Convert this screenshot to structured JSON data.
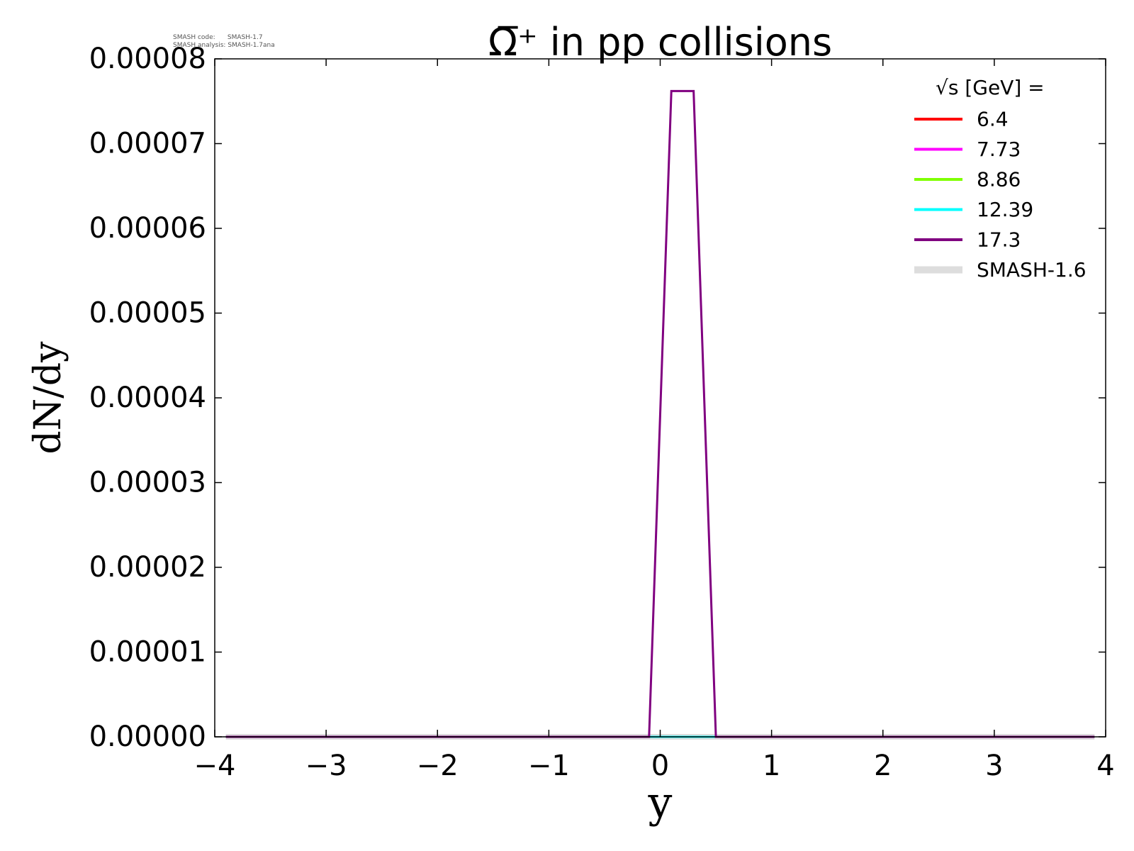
{
  "meta": {
    "code_label": "SMASH code:",
    "code_version": "SMASH-1.7",
    "analysis_label": "SMASH analysis:",
    "analysis_version": "SMASH-1.7ana"
  },
  "chart_data": {
    "type": "line",
    "title": "Ω̅⁺ in pp collisions",
    "xlabel": "y",
    "ylabel": "dN/dy",
    "xlim": [
      -4,
      4
    ],
    "ylim": [
      0,
      8e-05
    ],
    "xticks": [
      -4,
      -3,
      -2,
      -1,
      0,
      1,
      2,
      3,
      4
    ],
    "xtick_labels": [
      "−4",
      "−3",
      "−2",
      "−1",
      "0",
      "1",
      "2",
      "3",
      "4"
    ],
    "yticks": [
      0,
      1e-05,
      2e-05,
      3e-05,
      4e-05,
      5e-05,
      6e-05,
      7e-05,
      8e-05
    ],
    "ytick_labels": [
      "0.00000",
      "0.00001",
      "0.00002",
      "0.00003",
      "0.00004",
      "0.00005",
      "0.00006",
      "0.00007",
      "0.00008"
    ],
    "grid": false,
    "legend_title": "√s  [GeV] =",
    "legend_placement": "top-right",
    "series": [
      {
        "name": "SMASH-1.6",
        "color": "#dddddd",
        "width": 8,
        "x": [
          -3.9,
          3.9
        ],
        "y": [
          0,
          0
        ]
      },
      {
        "name": "6.4",
        "color": "#ff0000",
        "width": 3,
        "x": [
          -3.9,
          3.9
        ],
        "y": [
          0,
          0
        ]
      },
      {
        "name": "7.73",
        "color": "#ff00ff",
        "width": 3,
        "x": [
          -3.9,
          3.9
        ],
        "y": [
          0,
          0
        ]
      },
      {
        "name": "8.86",
        "color": "#7fff00",
        "width": 3,
        "x": [
          -3.9,
          3.9
        ],
        "y": [
          0,
          0
        ]
      },
      {
        "name": "12.39",
        "color": "#00ffff",
        "width": 3,
        "x": [
          -3.9,
          3.9
        ],
        "y": [
          0,
          0
        ]
      },
      {
        "name": "17.3",
        "color": "#800080",
        "width": 3,
        "x": [
          -3.9,
          -0.1,
          0.1,
          0.3,
          0.5,
          3.9
        ],
        "y": [
          0,
          0,
          7.62e-05,
          7.62e-05,
          0,
          0
        ]
      }
    ],
    "legend_order": [
      "6.4",
      "7.73",
      "8.86",
      "12.39",
      "17.3",
      "SMASH-1.6"
    ]
  }
}
